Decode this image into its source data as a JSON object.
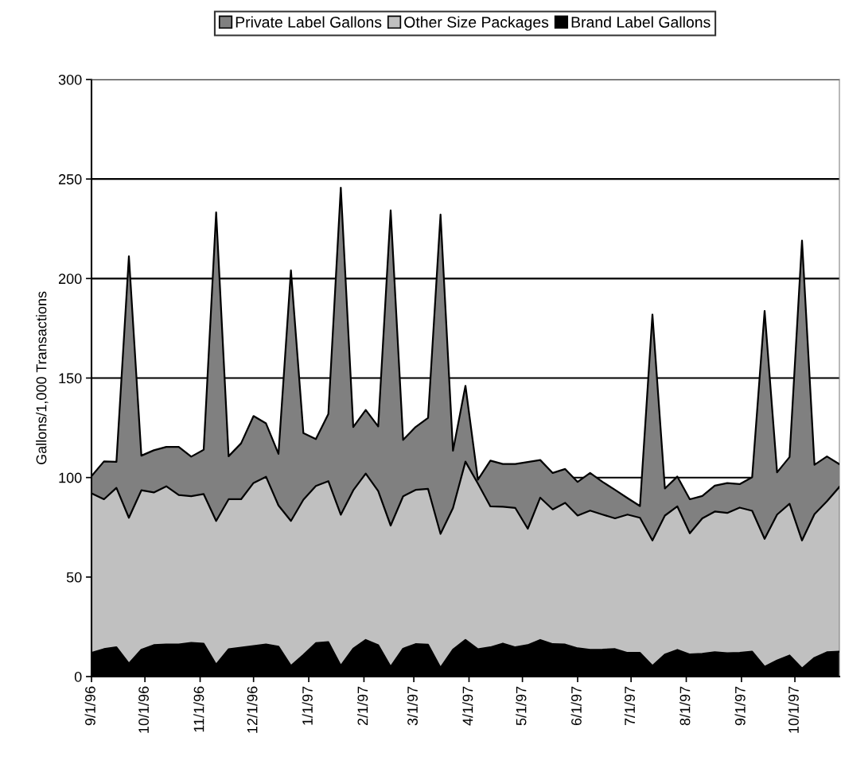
{
  "chart_data": {
    "type": "area",
    "stacked": true,
    "ylabel": "Gallons/1,000 Transactions",
    "x": [
      "1996-09-01",
      "1996-09-08",
      "1996-09-15",
      "1996-09-22",
      "1996-09-29",
      "1996-10-06",
      "1996-10-13",
      "1996-10-20",
      "1996-10-27",
      "1996-11-03",
      "1996-11-10",
      "1996-11-17",
      "1996-11-24",
      "1996-12-01",
      "1996-12-08",
      "1996-12-15",
      "1996-12-22",
      "1996-12-29",
      "1997-01-05",
      "1997-01-12",
      "1997-01-19",
      "1997-01-26",
      "1997-02-02",
      "1997-02-09",
      "1997-02-16",
      "1997-02-23",
      "1997-03-02",
      "1997-03-09",
      "1997-03-16",
      "1997-03-23",
      "1997-03-30",
      "1997-04-06",
      "1997-04-13",
      "1997-04-20",
      "1997-04-27",
      "1997-05-04",
      "1997-05-11",
      "1997-05-18",
      "1997-05-25",
      "1997-06-01",
      "1997-06-08",
      "1997-06-15",
      "1997-06-22",
      "1997-06-29",
      "1997-07-06",
      "1997-07-13",
      "1997-07-20",
      "1997-07-27",
      "1997-08-03",
      "1997-08-10",
      "1997-08-17",
      "1997-08-24",
      "1997-08-31",
      "1997-09-07",
      "1997-09-14",
      "1997-09-21",
      "1997-09-28",
      "1997-10-05",
      "1997-10-12",
      "1997-10-19",
      "1997-10-26"
    ],
    "series": [
      {
        "name": "Brand Label Gallons",
        "color": "#000000",
        "values": [
          11.9,
          13.8,
          14.7,
          6.5,
          13.5,
          15.8,
          16.1,
          16.1,
          16.9,
          16.5,
          6.0,
          13.7,
          14.5,
          15.3,
          16.1,
          15.0,
          5.4,
          10.9,
          16.8,
          17.3,
          5.4,
          14.0,
          18.4,
          15.8,
          4.9,
          14.0,
          16.3,
          16.0,
          4.4,
          13.5,
          18.4,
          13.7,
          14.7,
          16.6,
          14.7,
          15.8,
          18.4,
          16.3,
          16.1,
          14.2,
          13.4,
          13.5,
          13.8,
          11.9,
          11.9,
          5.4,
          11.1,
          13.4,
          11.1,
          11.4,
          12.2,
          11.7,
          11.9,
          12.5,
          4.9,
          8.1,
          10.6,
          4.1,
          9.4,
          12.2,
          12.5
        ]
      },
      {
        "name": "Other Size Packages",
        "color": "#c0c0c0",
        "values": [
          80.2,
          75.3,
          80.1,
          73.3,
          80.1,
          76.7,
          79.5,
          75.1,
          73.7,
          75.2,
          72.2,
          75.4,
          74.6,
          82.0,
          84.3,
          71.0,
          72.8,
          78.0,
          79.0,
          80.9,
          75.9,
          79.6,
          83.6,
          77.4,
          71.0,
          76.6,
          77.5,
          78.3,
          67.3,
          71.2,
          89.6,
          83.3,
          70.8,
          68.7,
          70.0,
          58.5,
          71.5,
          67.7,
          71.2,
          66.7,
          70.0,
          67.9,
          65.7,
          69.5,
          67.9,
          63.0,
          69.8,
          72.1,
          60.9,
          68.1,
          70.7,
          70.5,
          73.0,
          70.8,
          64.3,
          73.3,
          76.2,
          64.3,
          72.2,
          75.9,
          82.8
        ]
      },
      {
        "name": "Private Label Gallons",
        "color": "#808080",
        "values": [
          8.6,
          19.0,
          13.1,
          131.4,
          17.4,
          21.2,
          19.8,
          24.2,
          19.9,
          22.3,
          155.0,
          21.6,
          28.1,
          33.6,
          26.8,
          25.9,
          125.9,
          33.4,
          23.5,
          33.7,
          164.3,
          31.8,
          32.0,
          32.5,
          158.3,
          28.3,
          31.6,
          35.7,
          160.4,
          28.8,
          38.1,
          1.9,
          23.0,
          21.5,
          22.1,
          33.5,
          18.9,
          18.3,
          17.0,
          16.9,
          18.9,
          16.4,
          14.3,
          8.3,
          5.9,
          113.5,
          13.6,
          15.0,
          17.1,
          11.2,
          13.0,
          15.0,
          11.8,
          16.9,
          114.5,
          21.2,
          23.5,
          150.7,
          24.8,
          22.5,
          11.4
        ]
      }
    ],
    "xlim": [
      "1996-09-01",
      "1997-10-26"
    ],
    "xticks": [
      {
        "value": "1996-09-01",
        "label": "9/1/96"
      },
      {
        "value": "1996-10-01",
        "label": "10/1/96"
      },
      {
        "value": "1996-11-01",
        "label": "11/1/96"
      },
      {
        "value": "1996-12-01",
        "label": "12/1/96"
      },
      {
        "value": "1997-01-01",
        "label": "1/1/97"
      },
      {
        "value": "1997-02-01",
        "label": "2/1/97"
      },
      {
        "value": "1997-03-01",
        "label": "3/1/97"
      },
      {
        "value": "1997-04-01",
        "label": "4/1/97"
      },
      {
        "value": "1997-05-01",
        "label": "5/1/97"
      },
      {
        "value": "1997-06-01",
        "label": "6/1/97"
      },
      {
        "value": "1997-07-01",
        "label": "7/1/97"
      },
      {
        "value": "1997-08-01",
        "label": "8/1/97"
      },
      {
        "value": "1997-09-01",
        "label": "9/1/97"
      },
      {
        "value": "1997-10-01",
        "label": "10/1/97"
      }
    ],
    "ylim": [
      0,
      300
    ],
    "yticks": [
      0,
      50,
      100,
      150,
      200,
      250,
      300
    ],
    "grid": "y",
    "legend": "top"
  }
}
